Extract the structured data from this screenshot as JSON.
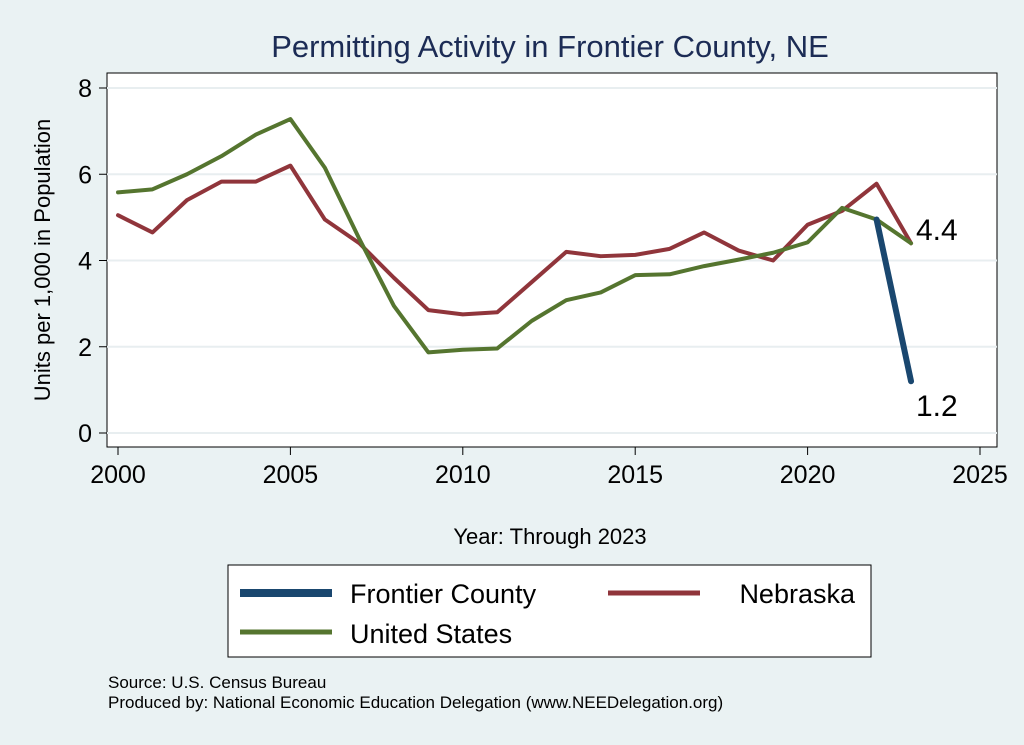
{
  "chart_data": {
    "type": "line",
    "title": "Permitting Activity in Frontier County, NE",
    "xlabel": "Year: Through 2023",
    "ylabel": "Units per 1,000 in Population",
    "xlim": [
      2000,
      2025
    ],
    "ylim": [
      0,
      8
    ],
    "x_ticks": [
      "2000",
      "2005",
      "2010",
      "2015",
      "2020",
      "2025"
    ],
    "y_ticks": [
      "0",
      "2",
      "4",
      "6",
      "8"
    ],
    "grid": true,
    "series": [
      {
        "name": "Frontier County",
        "color": "#1a476f",
        "points": [
          [
            2022,
            4.95
          ],
          [
            2023,
            1.2
          ]
        ],
        "end_label": "1.2"
      },
      {
        "name": "Nebraska",
        "color": "#90353b",
        "points": [
          [
            2000,
            5.05
          ],
          [
            2001,
            4.65
          ],
          [
            2002,
            5.4
          ],
          [
            2003,
            5.83
          ],
          [
            2004,
            5.83
          ],
          [
            2005,
            6.2
          ],
          [
            2006,
            4.95
          ],
          [
            2007,
            4.4
          ],
          [
            2008,
            3.6
          ],
          [
            2009,
            2.85
          ],
          [
            2010,
            2.75
          ],
          [
            2011,
            2.8
          ],
          [
            2012,
            3.5
          ],
          [
            2013,
            4.2
          ],
          [
            2014,
            4.1
          ],
          [
            2015,
            4.13
          ],
          [
            2016,
            4.27
          ],
          [
            2017,
            4.65
          ],
          [
            2018,
            4.23
          ],
          [
            2019,
            4.0
          ],
          [
            2020,
            4.83
          ],
          [
            2021,
            5.15
          ],
          [
            2022,
            5.78
          ],
          [
            2023,
            4.4
          ]
        ],
        "end_label": "4.4"
      },
      {
        "name": "United States",
        "color": "#55752f",
        "points": [
          [
            2000,
            5.58
          ],
          [
            2001,
            5.65
          ],
          [
            2002,
            6.0
          ],
          [
            2003,
            6.42
          ],
          [
            2004,
            6.92
          ],
          [
            2005,
            7.28
          ],
          [
            2006,
            6.15
          ],
          [
            2007,
            4.5
          ],
          [
            2008,
            2.95
          ],
          [
            2009,
            1.87
          ],
          [
            2010,
            1.93
          ],
          [
            2011,
            1.96
          ],
          [
            2012,
            2.6
          ],
          [
            2013,
            3.08
          ],
          [
            2014,
            3.26
          ],
          [
            2015,
            3.66
          ],
          [
            2016,
            3.68
          ],
          [
            2017,
            3.87
          ],
          [
            2018,
            4.02
          ],
          [
            2019,
            4.18
          ],
          [
            2020,
            4.42
          ],
          [
            2021,
            5.22
          ],
          [
            2022,
            4.95
          ],
          [
            2023,
            4.4
          ]
        ]
      }
    ],
    "legend_position": "bottom",
    "legend_entries": [
      "Frontier County",
      "Nebraska",
      "United States"
    ]
  },
  "source": "Source: U.S. Census Bureau",
  "produced_by": "Produced by: National Economic Education Delegation (www.NEEDelegation.org)"
}
